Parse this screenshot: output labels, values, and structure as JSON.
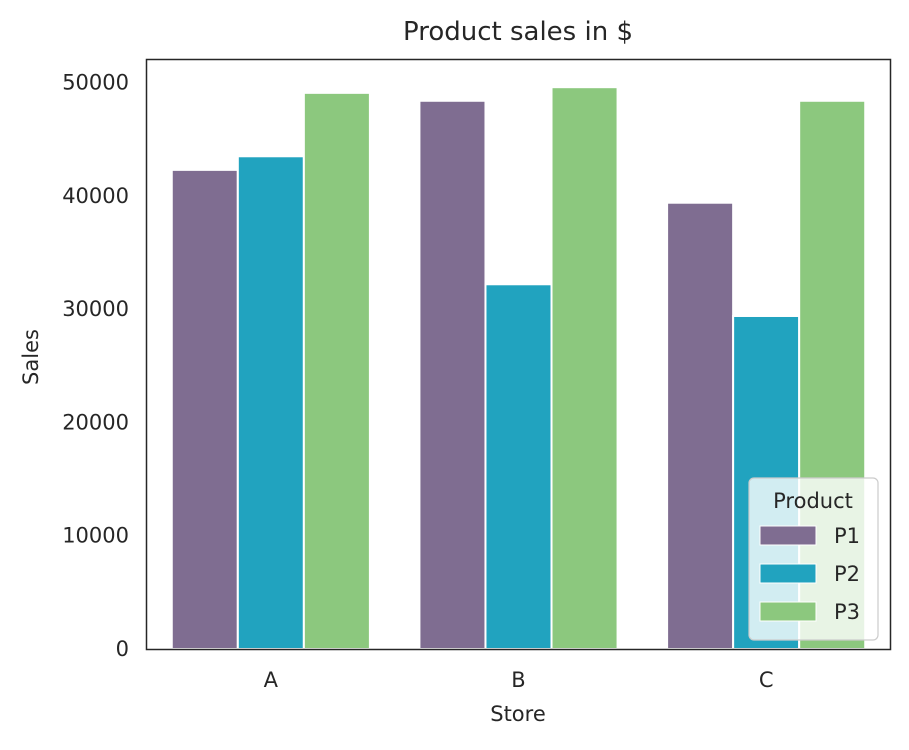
{
  "chart_data": {
    "type": "bar",
    "title": "Product sales in $",
    "xlabel": "Store",
    "ylabel": "Sales",
    "categories": [
      "A",
      "B",
      "C"
    ],
    "series": [
      {
        "name": "P1",
        "color": "#7f6d91",
        "values": [
          42300,
          48400,
          39400
        ]
      },
      {
        "name": "P2",
        "color": "#21a3bf",
        "values": [
          43500,
          32200,
          29400
        ]
      },
      {
        "name": "P3",
        "color": "#8cc87e",
        "values": [
          49100,
          49600,
          48400
        ]
      }
    ],
    "ylim": [
      0,
      52000
    ],
    "yticks": [
      0,
      10000,
      20000,
      30000,
      40000,
      50000
    ],
    "ytick_labels": [
      "0",
      "10000",
      "20000",
      "30000",
      "40000",
      "50000"
    ],
    "grid": false,
    "legend": {
      "title": "Product",
      "placement": "lower-right"
    }
  }
}
